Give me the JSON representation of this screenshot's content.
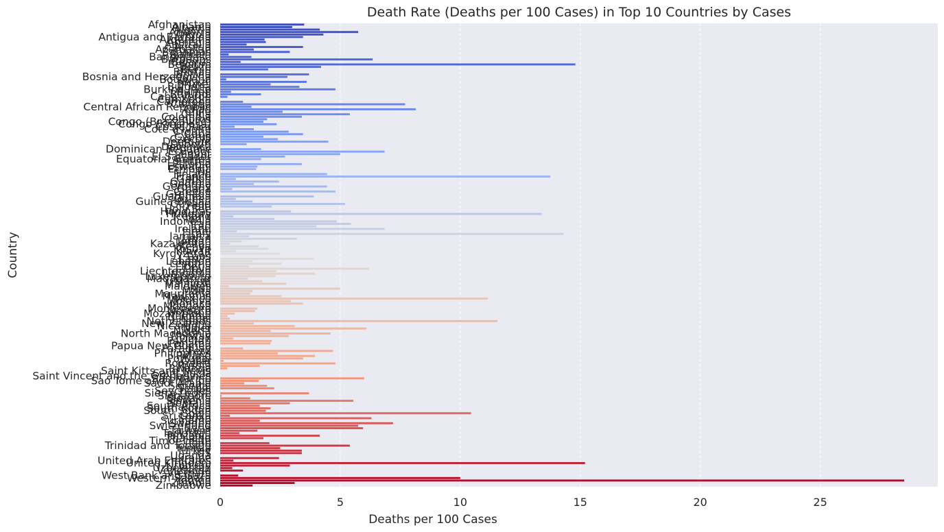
{
  "chart_data": {
    "type": "bar",
    "orientation": "horizontal",
    "title": "Death Rate (Deaths per 100 Cases) in Top 10 Countries by Cases",
    "xlabel": "Deaths per 100 Cases",
    "ylabel": "Country",
    "xlim": [
      0,
      29.9
    ],
    "xticks": [
      0,
      5,
      10,
      15,
      20,
      25
    ],
    "grid": "x",
    "palette": "coolwarm",
    "categories": [
      "Afghanistan",
      "Albania",
      "Algeria",
      "Andorra",
      "Angola",
      "Antigua and Barbuda",
      "Argentina",
      "Armenia",
      "Australia",
      "Austria",
      "Azerbaijan",
      "Bahamas",
      "Bahrain",
      "Bangladesh",
      "Barbados",
      "Belarus",
      "Belgium",
      "Belize",
      "Benin",
      "Bhutan",
      "Bolivia",
      "Bosnia and Herzegovina",
      "Botswana",
      "Brazil",
      "Brunei",
      "Bulgaria",
      "Burkina Faso",
      "Burma",
      "Burundi",
      "Cabo Verde",
      "Cambodia",
      "Cameroon",
      "Canada",
      "Central African Republic",
      "Chad",
      "Chile",
      "China",
      "Colombia",
      "Comoros",
      "Congo (Brazzaville)",
      "Congo (Kinshasa)",
      "Costa Rica",
      "Cote d'Ivoire",
      "Croatia",
      "Cuba",
      "Cyprus",
      "Czechia",
      "Denmark",
      "Djibouti",
      "Dominica",
      "Dominican Republic",
      "Ecuador",
      "Egypt",
      "El Salvador",
      "Equatorial Guinea",
      "Eritrea",
      "Estonia",
      "Eswatini",
      "Ethiopia",
      "Fiji",
      "Finland",
      "France",
      "Gabon",
      "Gambia",
      "Georgia",
      "Germany",
      "Ghana",
      "Greece",
      "Grenada",
      "Guatemala",
      "Guinea",
      "Guinea-Bissau",
      "Guyana",
      "Haiti",
      "Holy See",
      "Honduras",
      "Hungary",
      "Iceland",
      "India",
      "Indonesia",
      "Iran",
      "Iraq",
      "Ireland",
      "Israel",
      "Italy",
      "Jamaica",
      "Japan",
      "Jordan",
      "Kazakhstan",
      "Kenya",
      "Kosovo",
      "Kuwait",
      "Kyrgyzstan",
      "Laos",
      "Latvia",
      "Lebanon",
      "Lesotho",
      "Liberia",
      "Libya",
      "Liechtenstein",
      "Lithuania",
      "Luxembourg",
      "Madagascar",
      "Malawi",
      "Malaysia",
      "Maldives",
      "Mali",
      "Malta",
      "Mauritania",
      "Mauritius",
      "Mexico",
      "Moldova",
      "Monaco",
      "Mongolia",
      "Montenegro",
      "Morocco",
      "Mozambique",
      "Namibia",
      "Nepal",
      "Netherlands",
      "New Zealand",
      "Nicaragua",
      "Niger",
      "Nigeria",
      "North Macedonia",
      "Norway",
      "Oman",
      "Pakistan",
      "Panama",
      "Papua New Guinea",
      "Paraguay",
      "Peru",
      "Philippines",
      "Poland",
      "Portugal",
      "Qatar",
      "Romania",
      "Russia",
      "Rwanda",
      "Saint Kitts and Nevis",
      "Saint Lucia",
      "Saint Vincent and the Grenadines",
      "San Marino",
      "Sao Tome and Principe",
      "Saudi Arabia",
      "Senegal",
      "Serbia",
      "Seychelles",
      "Sierra Leone",
      "Singapore",
      "Slovakia",
      "Slovenia",
      "Somalia",
      "South Africa",
      "South Korea",
      "South Sudan",
      "Spain",
      "Sri Lanka",
      "Sudan",
      "Suriname",
      "Sweden",
      "Switzerland",
      "Syria",
      "Taiwan*",
      "Tajikistan",
      "Tanzania",
      "Thailand",
      "Timor-Leste",
      "Togo",
      "Trinidad and Tobago",
      "Tunisia",
      "Turkey",
      "US",
      "Uganda",
      "Ukraine",
      "United Arab Emirates",
      "United Kingdom",
      "Uruguay",
      "Uzbekistan",
      "Venezuela",
      "Vietnam",
      "West Bank and Gaza",
      "Western Sahara",
      "Yemen",
      "Zambia",
      "Zimbabwe"
    ],
    "values": [
      3.5,
      3.0,
      4.15,
      5.75,
      4.3,
      3.45,
      1.85,
      1.9,
      1.1,
      3.45,
      1.4,
      2.9,
      0.35,
      1.3,
      6.35,
      0.85,
      14.8,
      4.2,
      2.0,
      0.0,
      3.7,
      2.8,
      0.25,
      3.6,
      2.1,
      3.3,
      4.8,
      0.45,
      1.7,
      0.3,
      0.0,
      0.95,
      7.7,
      1.3,
      8.15,
      2.6,
      5.4,
      3.4,
      1.95,
      1.8,
      2.35,
      0.6,
      1.4,
      2.85,
      3.45,
      1.8,
      2.4,
      4.5,
      1.1,
      0.0,
      1.7,
      6.85,
      5.0,
      2.7,
      1.7,
      0.0,
      3.4,
      1.55,
      1.5,
      0.0,
      4.45,
      13.75,
      0.65,
      2.45,
      1.4,
      4.45,
      0.5,
      4.8,
      0.0,
      3.9,
      0.65,
      1.35,
      5.2,
      2.15,
      0.0,
      2.95,
      13.4,
      0.55,
      2.25,
      4.85,
      5.45,
      4.0,
      6.85,
      0.7,
      14.3,
      1.2,
      3.2,
      0.9,
      0.4,
      1.6,
      2.0,
      0.65,
      2.5,
      0.0,
      3.9,
      1.35,
      2.55,
      1.2,
      6.2,
      2.35,
      3.95,
      2.3,
      1.15,
      1.75,
      2.75,
      0.35,
      5.0,
      1.35,
      1.25,
      2.55,
      11.15,
      2.95,
      3.45,
      0.0,
      1.55,
      1.45,
      0.6,
      0.3,
      0.4,
      11.55,
      1.4,
      3.1,
      6.1,
      2.1,
      4.6,
      2.85,
      0.55,
      2.15,
      2.1,
      0.0,
      0.95,
      4.7,
      2.4,
      3.95,
      3.45,
      0.15,
      4.8,
      1.65,
      0.3,
      0.0,
      0.0,
      0.0,
      6.0,
      1.6,
      1.0,
      1.95,
      2.25,
      0.0,
      3.7,
      0.05,
      1.25,
      5.55,
      2.9,
      1.65,
      2.1,
      1.9,
      10.45,
      0.4,
      6.3,
      1.65,
      7.2,
      5.75,
      5.95,
      1.55,
      0.8,
      4.15,
      1.8,
      0.0,
      2.05,
      5.4,
      2.5,
      3.4,
      3.4,
      0.0,
      2.45,
      0.55,
      15.2,
      2.9,
      0.5,
      0.95,
      0.0,
      0.75,
      10.0,
      28.5,
      3.1,
      1.35
    ]
  }
}
